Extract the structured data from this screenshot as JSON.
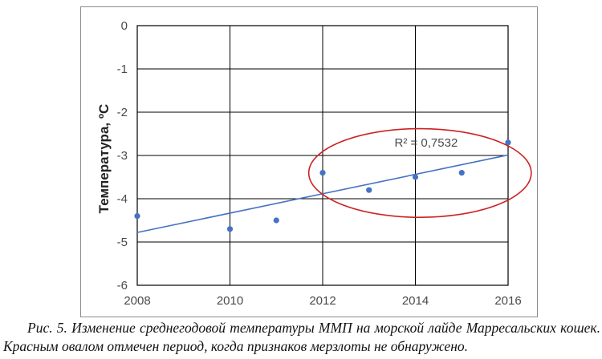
{
  "chart_data": {
    "type": "scatter",
    "title": "",
    "xlabel": "",
    "ylabel": "Температура, ºС",
    "xlim": [
      2008,
      2016
    ],
    "ylim": [
      -6,
      0
    ],
    "x_ticks": [
      "2008",
      "2010",
      "2012",
      "2014",
      "2016"
    ],
    "y_ticks": [
      "0",
      "-1",
      "-2",
      "-3",
      "-4",
      "-5",
      "-6"
    ],
    "grid": true,
    "point_color": "#4472c4",
    "trendline_color": "#4472c4",
    "points": [
      {
        "x": 2008,
        "y": -4.4
      },
      {
        "x": 2010,
        "y": -4.7
      },
      {
        "x": 2011,
        "y": -4.5
      },
      {
        "x": 2012,
        "y": -3.4
      },
      {
        "x": 2013,
        "y": -3.8
      },
      {
        "x": 2014,
        "y": -3.5
      },
      {
        "x": 2015,
        "y": -3.4
      },
      {
        "x": 2016,
        "y": -2.7
      }
    ],
    "trendline": {
      "x": [
        2008,
        2016
      ],
      "y": [
        -4.78,
        -2.99
      ]
    },
    "annotation": {
      "text": "R² = 0,7532",
      "ellipse_color": "#cc2222",
      "ellipse_x_range": [
        2011.7,
        2016.5
      ],
      "ellipse_y_range": [
        -4.43,
        -2.38
      ]
    }
  },
  "caption": "Рис. 5. Изменение среднегодовой температуры ММП на морской лайде Марресальских кошек. Красным овалом отмечен период, когда признаков мерзлоты не обнаружено."
}
